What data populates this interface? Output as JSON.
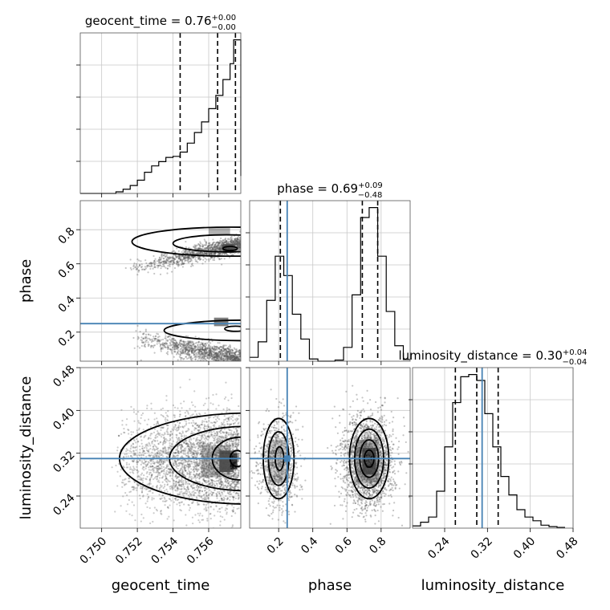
{
  "chart_data": {
    "type": "corner",
    "parameters": [
      "geocent_time",
      "phase",
      "luminosity_distance"
    ],
    "truth_color": "#4682b4",
    "truths": {
      "phase": 0.25,
      "luminosity_distance": 0.31
    },
    "panels": {
      "geocent_time": {
        "title": {
          "main": "geocent_time = 0.76",
          "sup": "+0.00",
          "sub": "−0.00"
        },
        "range": [
          0.7488,
          0.7578
        ],
        "bins": [
          0.7488,
          0.7492,
          0.7496,
          0.75,
          0.7504,
          0.7508,
          0.7512,
          0.7516,
          0.752,
          0.7524,
          0.7528,
          0.7532,
          0.7536,
          0.754,
          0.7544,
          0.7548,
          0.7552,
          0.7556,
          0.756,
          0.7564,
          0.7568,
          0.7572,
          0.7574,
          0.7578
        ],
        "counts": [
          0,
          0,
          0,
          0,
          0,
          0.3,
          0.8,
          1.5,
          2.5,
          4.0,
          5.2,
          6.0,
          6.8,
          7.0,
          7.8,
          9.5,
          11.5,
          13.5,
          16.0,
          18.5,
          21.5,
          24.5,
          29.0,
          3.3
        ],
        "quantiles": [
          0.7544,
          0.7565,
          0.7575
        ],
        "ticks": [
          0.75,
          0.752,
          0.754,
          0.756
        ],
        "ticklabels": [
          "0.750",
          "0.752",
          "0.754",
          "0.756"
        ]
      },
      "phase": {
        "title": {
          "main": "phase = 0.69",
          "sup": "+0.09",
          "sub": "−0.48"
        },
        "range": [
          0.03,
          0.97
        ],
        "bins": [
          0.03,
          0.08,
          0.13,
          0.18,
          0.23,
          0.28,
          0.33,
          0.38,
          0.43,
          0.48,
          0.53,
          0.58,
          0.63,
          0.68,
          0.73,
          0.78,
          0.83,
          0.88,
          0.93
        ],
        "counts": [
          0.7,
          3.5,
          11.0,
          19.0,
          15.5,
          8.5,
          4.0,
          0.4,
          0,
          0,
          0.2,
          2.5,
          12.0,
          26.0,
          27.8,
          19.0,
          9.0,
          2.8,
          0.3
        ],
        "quantiles": [
          0.21,
          0.69,
          0.78
        ],
        "ticks": [
          0.2,
          0.4,
          0.6,
          0.8
        ],
        "ticklabels": [
          "0.2",
          "0.4",
          "0.6",
          "0.8"
        ]
      },
      "luminosity_distance": {
        "title": {
          "main": "luminosity_distance = 0.30",
          "sup": "+0.04",
          "sub": "−0.04"
        },
        "range": [
          0.18,
          0.48
        ],
        "bins": [
          0.18,
          0.195,
          0.21,
          0.225,
          0.24,
          0.255,
          0.27,
          0.285,
          0.3,
          0.315,
          0.33,
          0.345,
          0.36,
          0.375,
          0.39,
          0.405,
          0.42,
          0.435,
          0.45,
          0.465
        ],
        "counts": [
          0.3,
          0.8,
          1.5,
          5.0,
          11.0,
          17.0,
          20.5,
          20.8,
          20.0,
          15.5,
          11.0,
          7.0,
          4.5,
          2.5,
          1.5,
          1.0,
          0.4,
          0.2,
          0.1
        ],
        "quantiles": [
          0.26,
          0.3,
          0.34
        ],
        "ticks": [
          0.24,
          0.32,
          0.4,
          0.48
        ],
        "ticklabels": [
          "0.24",
          "0.32",
          "0.40",
          "0.48"
        ]
      }
    },
    "axis_labels": {
      "x": [
        "geocent_time",
        "phase",
        "luminosity_distance"
      ],
      "y": [
        "phase",
        "luminosity_distance"
      ]
    }
  }
}
